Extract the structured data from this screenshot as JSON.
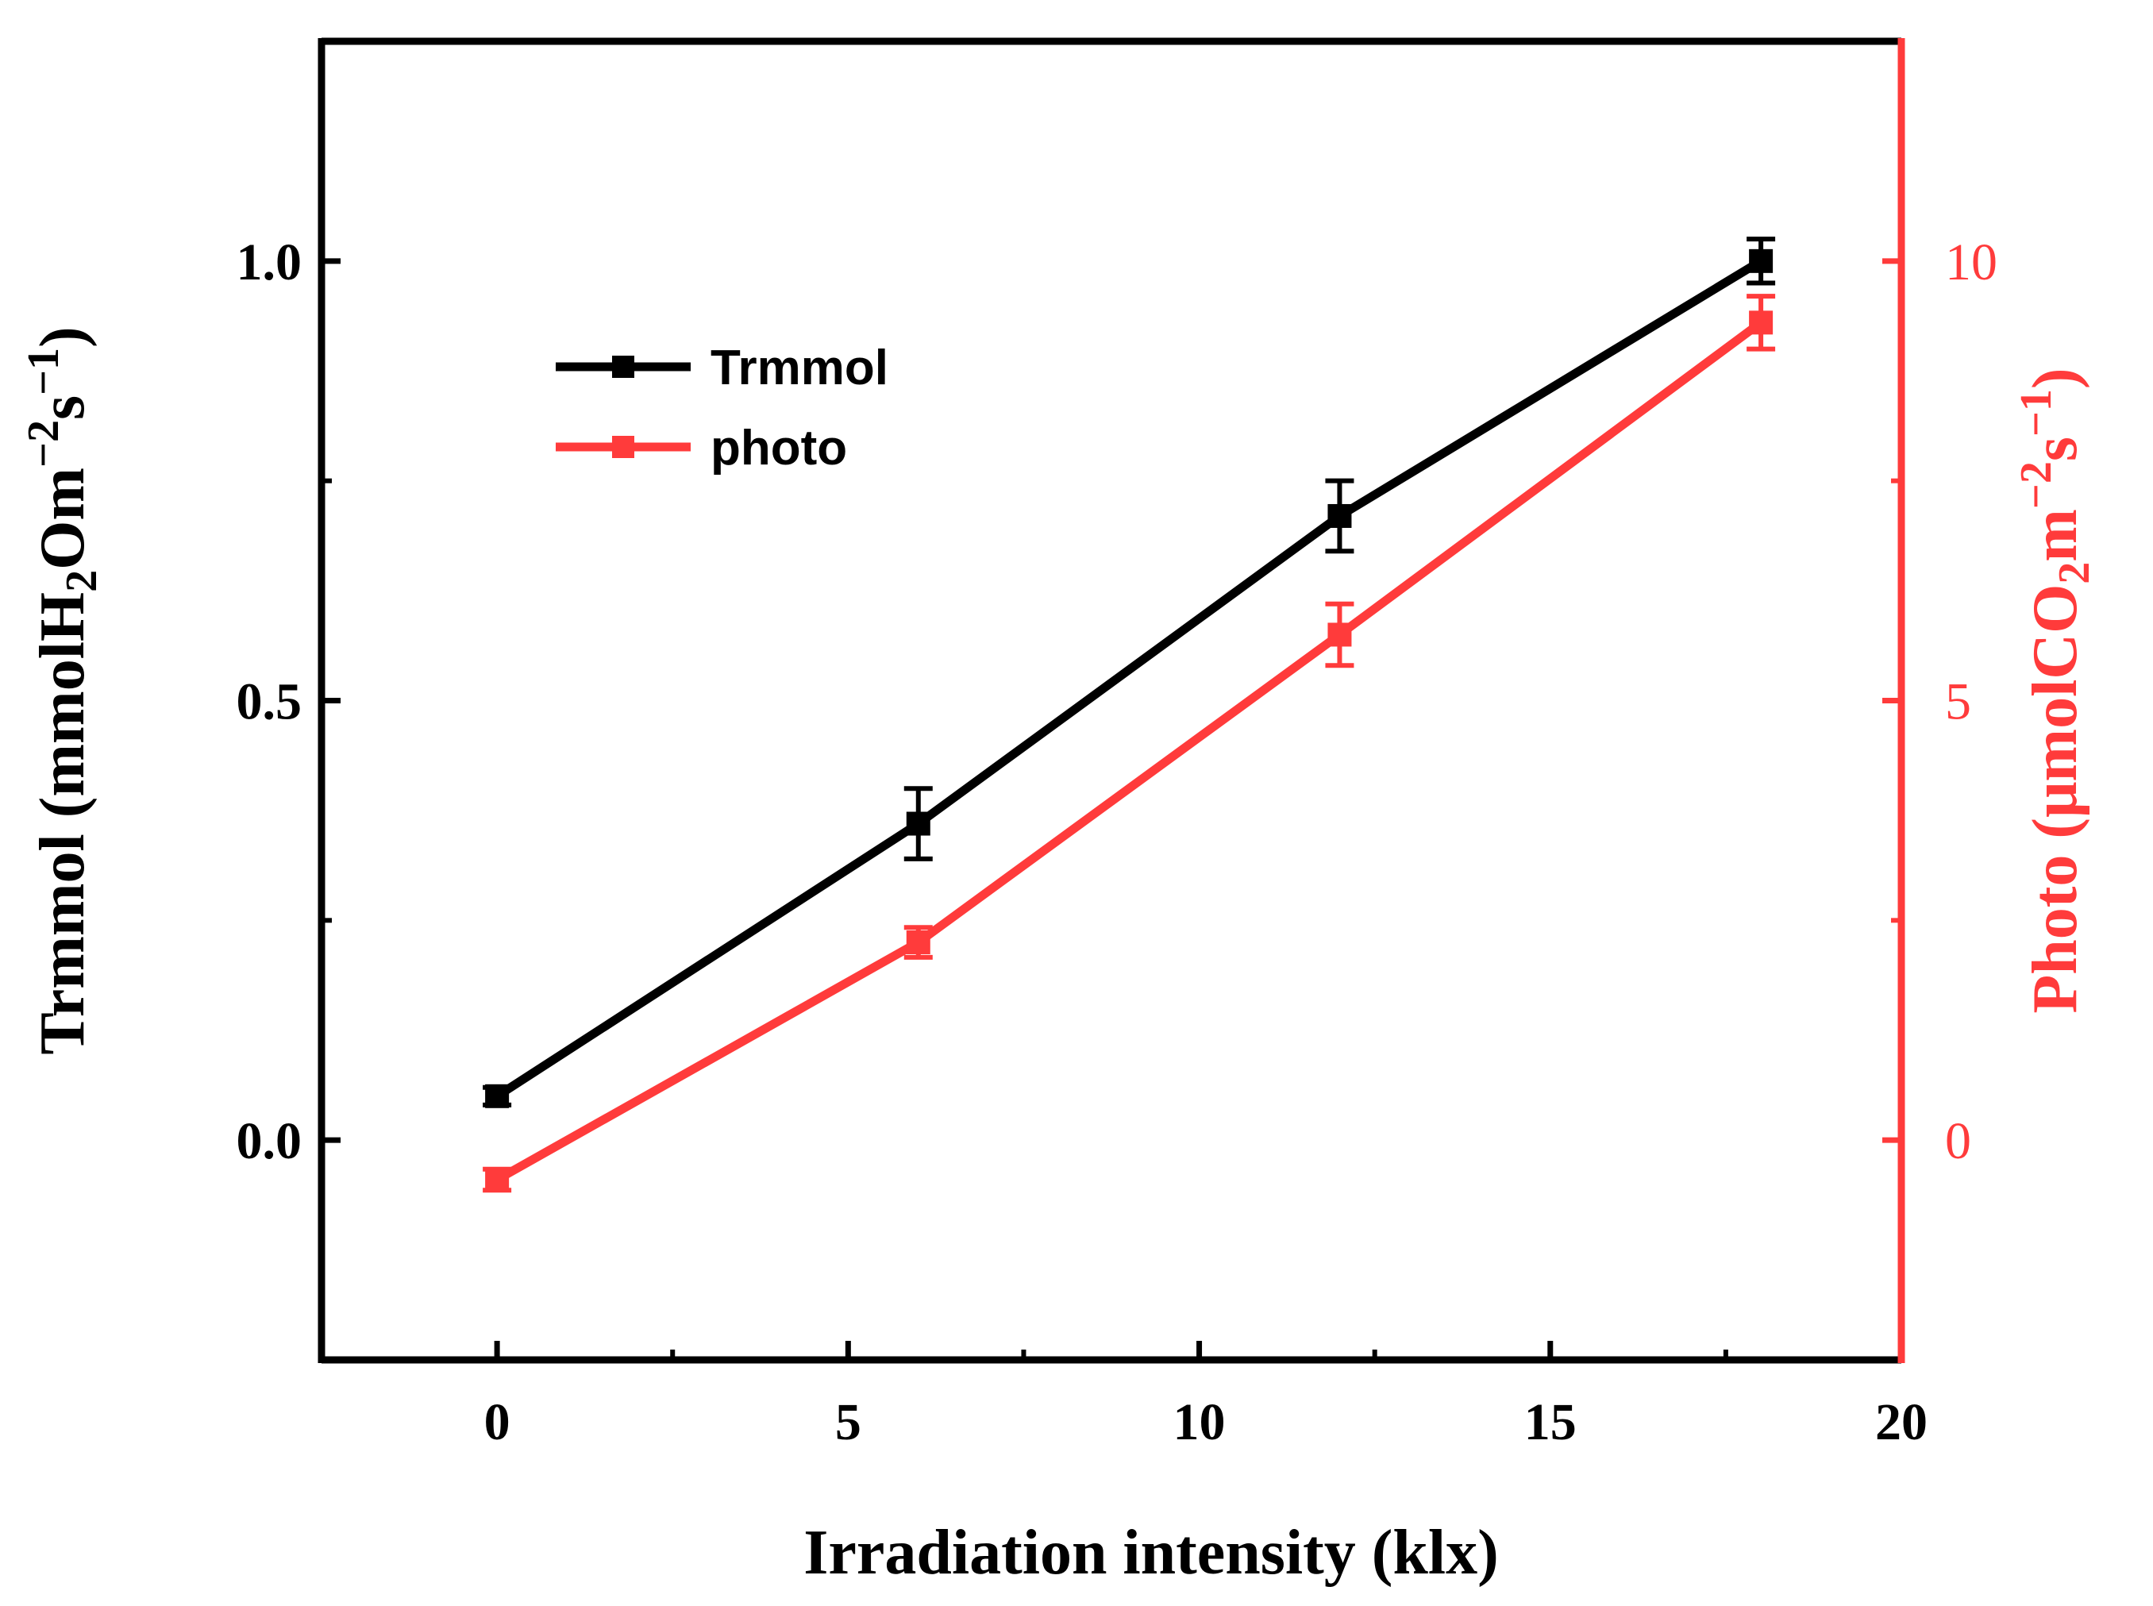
{
  "chart_data": {
    "type": "line",
    "title": "",
    "xlabel": "Irradiation intensity (klx)",
    "x": [
      0,
      6,
      12,
      18
    ],
    "xlim": [
      -2.5,
      20
    ],
    "xticks": [
      "0",
      "5",
      "10",
      "15",
      "20"
    ],
    "ylabel_left": {
      "main": "Trmmol (mmolH",
      "sub": "2",
      "mid": "Om",
      "sup1": "−2",
      "mid2": "s",
      "sup2": "−1",
      "end": ")"
    },
    "ylim_left": [
      -0.25,
      1.25
    ],
    "yticks_left": [
      "0.0",
      "0.5",
      "1.0"
    ],
    "ylabel_right": {
      "main": "Photo (μmolCO",
      "sub": "2",
      "mid": "m",
      "sup1": "−2",
      "mid2": "s",
      "sup2": "−1",
      "end": ")"
    },
    "ylim_right": [
      -2.5,
      12.5
    ],
    "yticks_right": [
      "0",
      "5",
      "10"
    ],
    "series": [
      {
        "name": "Trmmol",
        "axis": "left",
        "color": "#000000",
        "values": [
          0.05,
          0.36,
          0.71,
          1.0
        ],
        "errors": [
          0.01,
          0.04,
          0.04,
          0.025
        ]
      },
      {
        "name": "photo",
        "axis": "right",
        "color": "#ff3b3b",
        "values": [
          -0.45,
          2.25,
          5.75,
          9.3
        ],
        "errors": [
          0.12,
          0.17,
          0.35,
          0.3
        ]
      }
    ],
    "legend": {
      "position": "top-left",
      "entries": [
        "Trmmol",
        "photo"
      ]
    }
  }
}
